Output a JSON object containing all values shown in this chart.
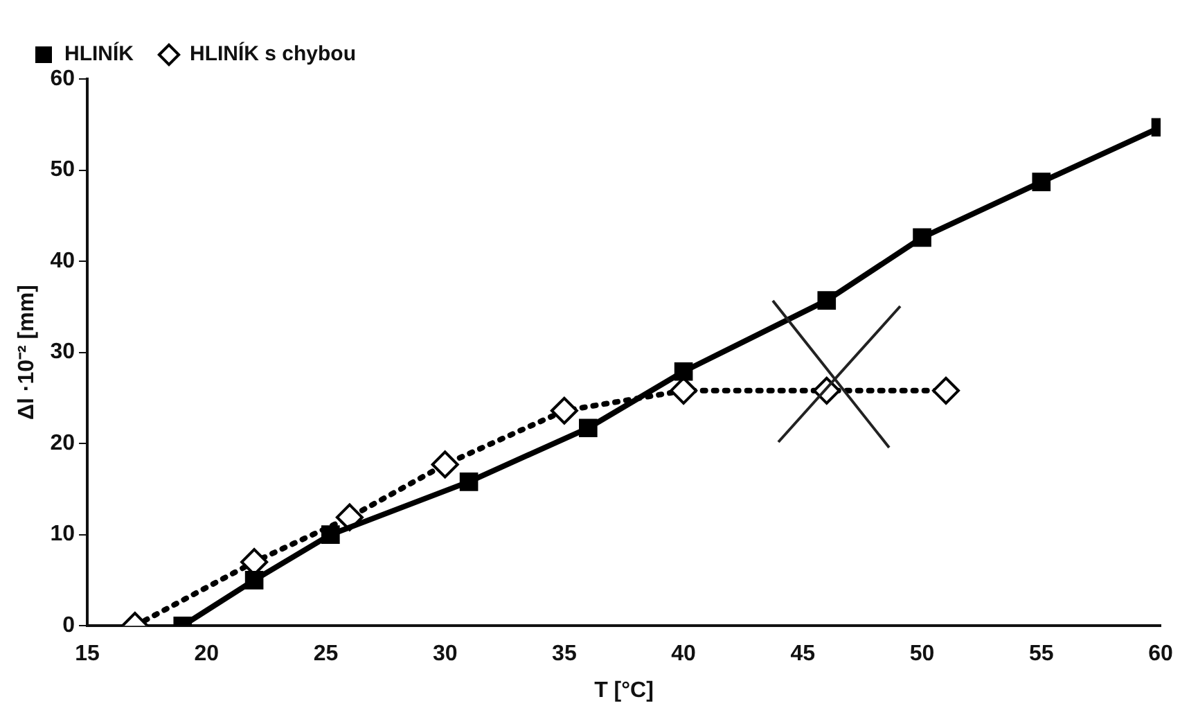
{
  "chart_data": {
    "type": "line",
    "xlabel": "T [°C]",
    "ylabel": "Δl ·10⁻² [mm]",
    "xlim": [
      15,
      60
    ],
    "xticks": [
      15,
      20,
      25,
      30,
      35,
      40,
      45,
      50,
      55,
      60
    ],
    "ylim": [
      0,
      60
    ],
    "yticks": [
      0,
      10,
      20,
      30,
      40,
      50,
      60
    ],
    "grid": false,
    "legend": "top left",
    "series": [
      {
        "name": "HLINÍK",
        "color": "#000000",
        "marker": "square",
        "line_style": "solid",
        "x": [
          19,
          22,
          25.2,
          31,
          36,
          40,
          46,
          50,
          55,
          60
        ],
        "values": [
          0,
          5,
          10,
          15.8,
          21.7,
          27.9,
          35.7,
          42.6,
          48.7,
          54.7
        ]
      },
      {
        "name": "HLINÍK s chybou",
        "color": "#000000",
        "marker": "diamond",
        "line_style": "dotted",
        "x": [
          17,
          22,
          26,
          30,
          35,
          40,
          46,
          51
        ],
        "values": [
          0,
          7,
          11.9,
          17.7,
          23.6,
          25.8,
          25.8,
          25.8
        ]
      }
    ]
  }
}
